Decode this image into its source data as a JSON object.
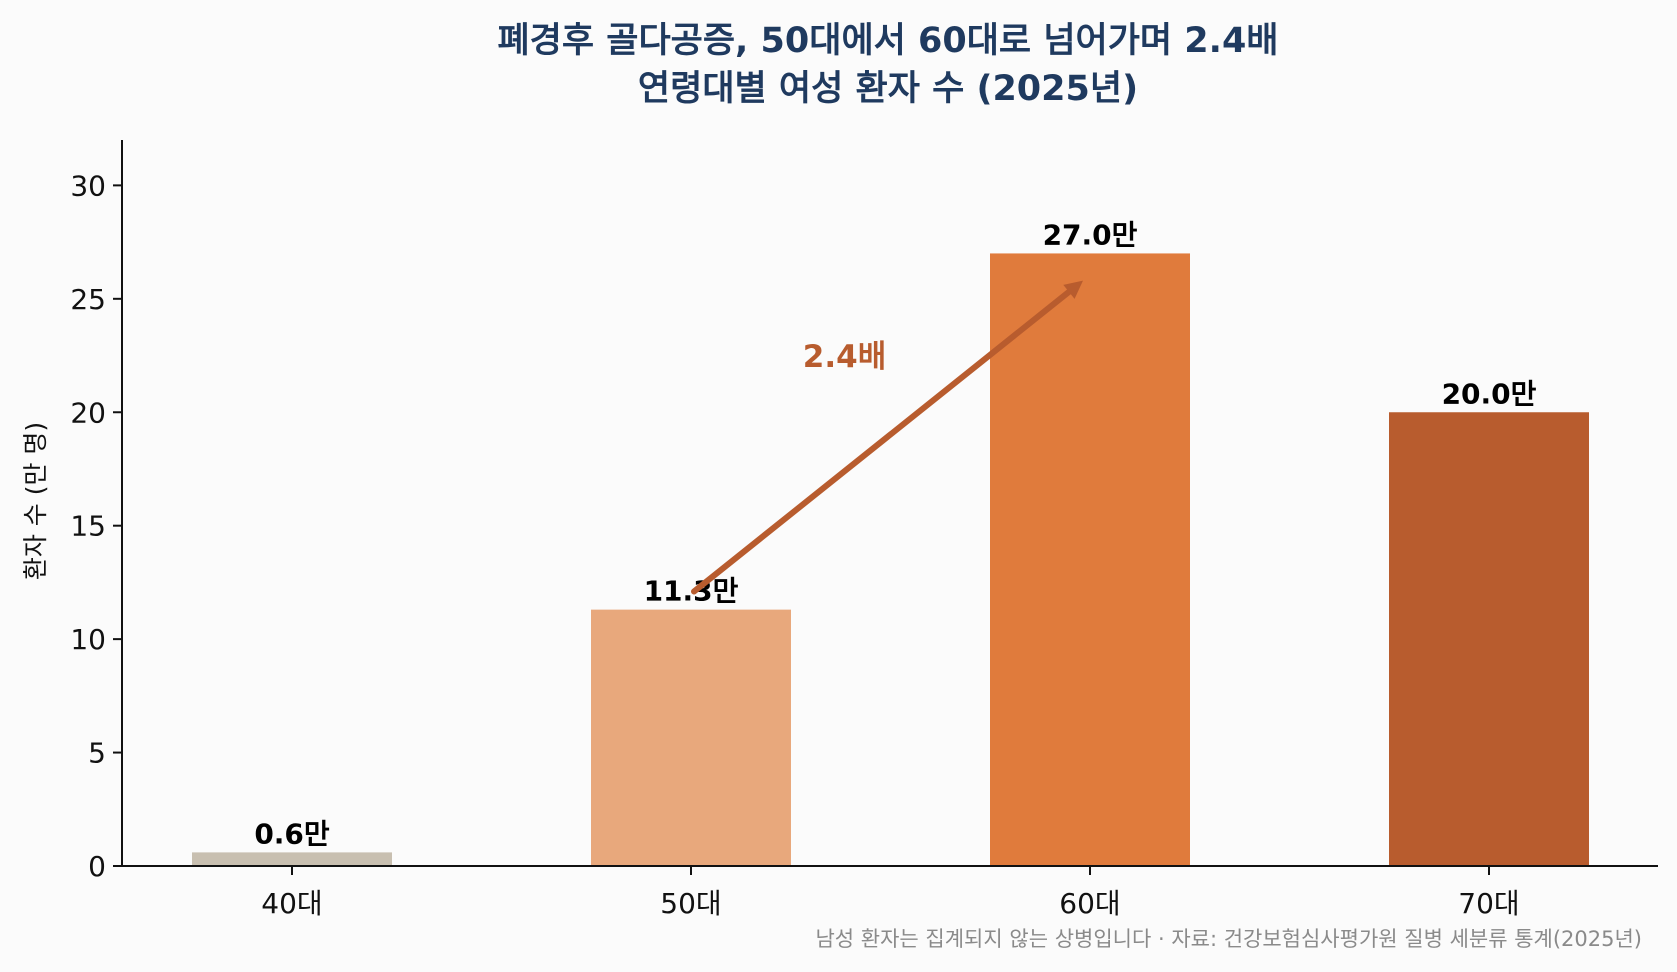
{
  "chart_data": {
    "type": "bar",
    "title": [
      "폐경후 골다공증, 50대에서 60대로 넘어가며 2.4배",
      "연령대별 여성 환자 수 (2025년)"
    ],
    "xlabel": "",
    "ylabel": "환자 수 (만 명)",
    "categories": [
      "40대",
      "50대",
      "60대",
      "70대"
    ],
    "values": [
      0.6,
      11.3,
      27.0,
      20.0
    ],
    "value_labels": [
      "0.6만",
      "11.3만",
      "27.0만",
      "20.0만"
    ],
    "bar_colors": [
      "#c8bfb0",
      "#e8a87c",
      "#e07b3c",
      "#b85c2e"
    ],
    "ylim": [
      0,
      32
    ],
    "yticks": [
      0,
      5,
      10,
      15,
      20,
      25,
      30
    ],
    "grid": false,
    "annotation": {
      "text": "2.4배",
      "from_category": "50대",
      "to_category": "60대",
      "from_value": 12.1,
      "to_value": 25.8,
      "color": "#b85c2e"
    },
    "footnote": "남성 환자는 집계되지 않는 상병입니다 · 자료: 건강보험심사평가원 질병 세분류 통계(2025년)"
  }
}
